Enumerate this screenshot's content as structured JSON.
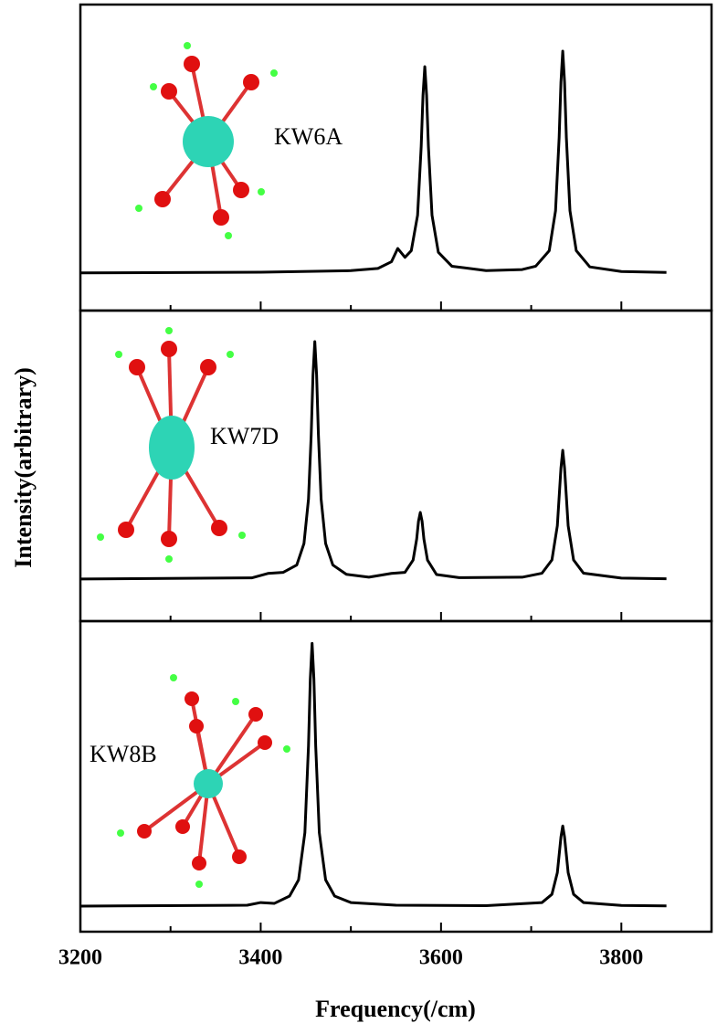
{
  "chart_data": [
    {
      "type": "line",
      "annotation": "KW6A",
      "x": [
        3200,
        3400,
        3500,
        3530,
        3545,
        3552,
        3560,
        3567,
        3574,
        3578,
        3580,
        3582,
        3584,
        3586,
        3590,
        3597,
        3612,
        3650,
        3690,
        3705,
        3720,
        3727,
        3731,
        3733,
        3735,
        3737,
        3739,
        3743,
        3750,
        3765,
        3800,
        3850
      ],
      "series": [
        {
          "color": "#000000",
          "values": [
            0,
            0.003,
            0.01,
            0.02,
            0.05,
            0.11,
            0.07,
            0.1,
            0.26,
            0.57,
            0.8,
            0.93,
            0.8,
            0.57,
            0.26,
            0.093,
            0.03,
            0.01,
            0.015,
            0.03,
            0.1,
            0.28,
            0.61,
            0.86,
            1.0,
            0.86,
            0.61,
            0.28,
            0.1,
            0.027,
            0.006,
            0.002
          ]
        }
      ],
      "xlim": [
        3200,
        3900
      ],
      "ylim": [
        -0.17,
        1.21
      ]
    },
    {
      "type": "line",
      "annotation": "KW7D",
      "ylabel": "Intensity(arbitrary)",
      "x": [
        3200,
        3390,
        3408,
        3425,
        3440,
        3448,
        3453,
        3456,
        3458,
        3460,
        3462,
        3464,
        3467,
        3472,
        3480,
        3495,
        3520,
        3545,
        3560,
        3569,
        3573,
        3575,
        3577,
        3579,
        3581,
        3585,
        3595,
        3620,
        3690,
        3712,
        3723,
        3729,
        3733,
        3735,
        3737,
        3741,
        3747,
        3758,
        3800,
        3850
      ],
      "series": [
        {
          "color": "#000000",
          "values": [
            0,
            0.005,
            0.025,
            0.03,
            0.063,
            0.16,
            0.36,
            0.65,
            0.92,
            1.07,
            0.92,
            0.65,
            0.36,
            0.16,
            0.063,
            0.021,
            0.008,
            0.025,
            0.03,
            0.085,
            0.18,
            0.26,
            0.3,
            0.26,
            0.18,
            0.085,
            0.02,
            0.006,
            0.008,
            0.026,
            0.086,
            0.24,
            0.5,
            0.58,
            0.5,
            0.24,
            0.086,
            0.026,
            0.004,
            0.001
          ]
        }
      ],
      "xlim": [
        3200,
        3900
      ],
      "ylim": [
        -0.19,
        1.21
      ]
    },
    {
      "type": "line",
      "annotation": "KW8B",
      "xlabel": "Frequency(/cm)",
      "x": [
        3200,
        3385,
        3400,
        3415,
        3432,
        3442,
        3449,
        3453,
        3455,
        3457,
        3459,
        3461,
        3465,
        3472,
        3482,
        3500,
        3550,
        3650,
        3712,
        3723,
        3729,
        3733,
        3735,
        3737,
        3741,
        3747,
        3758,
        3800,
        3850
      ],
      "series": [
        {
          "color": "#000000",
          "values": [
            0,
            0.004,
            0.016,
            0.012,
            0.045,
            0.118,
            0.33,
            0.72,
            1.02,
            1.18,
            1.02,
            0.72,
            0.33,
            0.118,
            0.045,
            0.016,
            0.004,
            0.002,
            0.016,
            0.053,
            0.15,
            0.31,
            0.36,
            0.31,
            0.15,
            0.053,
            0.016,
            0.003,
            0.001
          ]
        }
      ],
      "xlim": [
        3200,
        3900
      ],
      "ylim": [
        -0.115,
        1.28
      ],
      "xticks": [
        3200,
        3400,
        3600,
        3800
      ],
      "xminorticks": [
        3300,
        3500,
        3700
      ]
    }
  ]
}
